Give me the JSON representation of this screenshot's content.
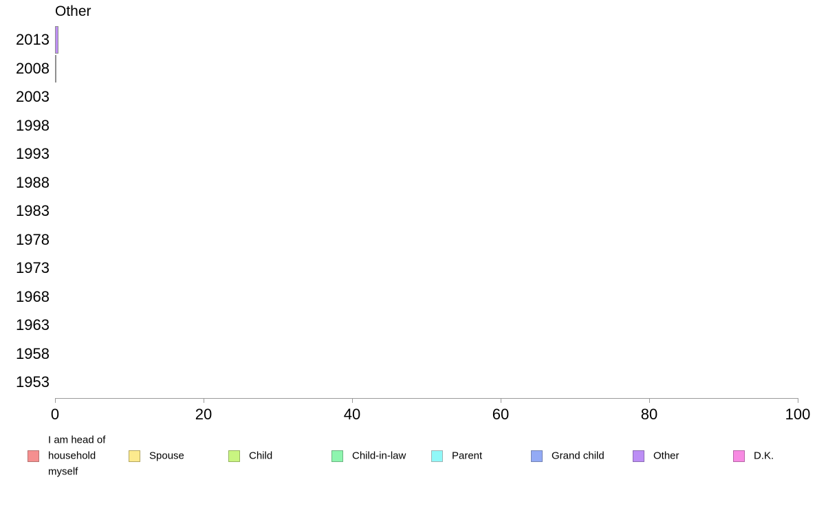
{
  "chart_data": {
    "type": "bar",
    "orientation": "horizontal",
    "title": "Other",
    "categories": [
      "2013",
      "2008",
      "2003",
      "1998",
      "1993",
      "1988",
      "1983",
      "1978",
      "1973",
      "1968",
      "1963",
      "1958",
      "1953"
    ],
    "values": [
      0.5,
      0.1,
      0,
      0,
      0,
      0,
      0,
      0,
      0,
      0,
      0,
      0,
      0
    ],
    "series_name": "Other",
    "bar_color": "#bd8ef2",
    "bar_border_color": "#8f8f8f",
    "xlabel": "",
    "ylabel": "",
    "xlim": [
      0,
      100
    ],
    "x_ticks": [
      0,
      20,
      40,
      60,
      80,
      100
    ],
    "grid": false,
    "axis_color": "#999999",
    "text_color": "#000000",
    "legend_position": "bottom",
    "legend": [
      {
        "label": "I am head of household myself",
        "color": "#f58f8f",
        "border": "#b57371"
      },
      {
        "label": "Spouse",
        "color": "#fcea8e",
        "border": "#b3a660"
      },
      {
        "label": "Child",
        "color": "#c9f581",
        "border": "#95b35f"
      },
      {
        "label": "Child-in-law",
        "color": "#8ef5af",
        "border": "#6db381"
      },
      {
        "label": "Parent",
        "color": "#90f8f8",
        "border": "#9fb3b3"
      },
      {
        "label": "Grand child",
        "color": "#93aaf5",
        "border": "#7584b3"
      },
      {
        "label": "Other",
        "color": "#bc8ef5",
        "border": "#8b6cb3"
      },
      {
        "label": "D.K.",
        "color": "#f78ae2",
        "border": "#b567a6"
      }
    ]
  }
}
